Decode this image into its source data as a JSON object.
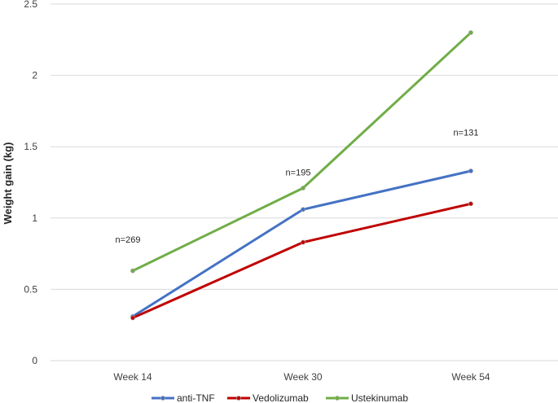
{
  "chart_data": {
    "type": "line",
    "title": "",
    "xlabel": "",
    "ylabel": "Weight gain (kg)",
    "categories": [
      "Week 14",
      "Week 30",
      "Week 54"
    ],
    "ylim": [
      0,
      2.5
    ],
    "yticks": [
      "0",
      "0.5",
      "1",
      "1.5",
      "2",
      "2.5"
    ],
    "grid": "horizontal",
    "legend_position": "bottom",
    "series": [
      {
        "name": "anti-TNF",
        "color": "#4472C4",
        "values": [
          0.31,
          1.06,
          1.33
        ]
      },
      {
        "name": "Vedolizumab",
        "color": "#C00000",
        "values": [
          0.3,
          0.83,
          1.1
        ]
      },
      {
        "name": "Ustekinumab",
        "color": "#70AD47",
        "values": [
          0.63,
          1.21,
          2.3
        ]
      }
    ],
    "annotations": [
      {
        "text": "n=269",
        "category": "Week 14",
        "y": 0.85
      },
      {
        "text": "n=195",
        "category": "Week 30",
        "y": 1.32
      },
      {
        "text": "n=131",
        "category": "Week 54",
        "y": 1.6
      }
    ]
  }
}
